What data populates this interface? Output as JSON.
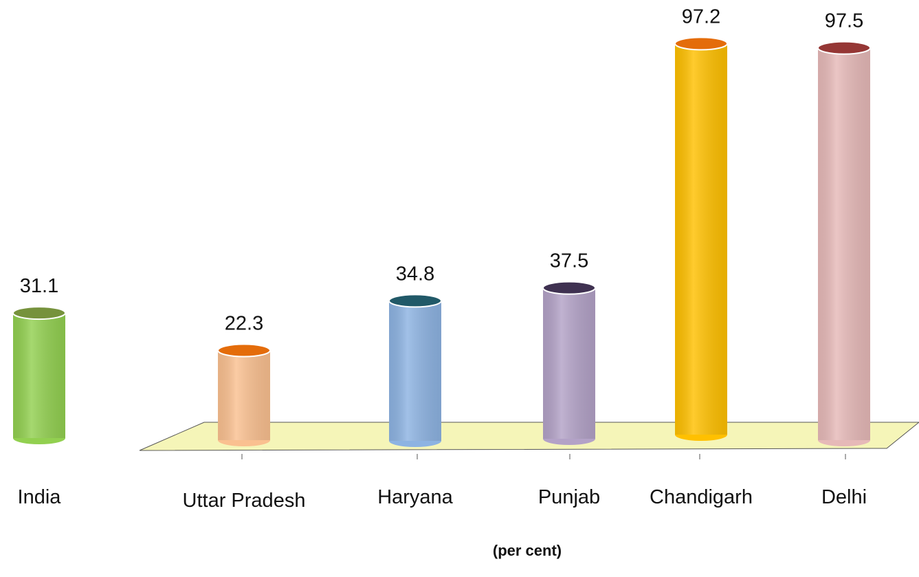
{
  "chart_data": {
    "type": "bar",
    "x_label": "(per cent)",
    "categories": [
      "India",
      "Uttar Pradesh",
      "Haryana",
      "Punjab",
      "Chandigarh",
      "Delhi"
    ],
    "values": [
      31.1,
      22.3,
      34.8,
      37.5,
      97.2,
      97.5
    ],
    "colors": [
      "#92d050",
      "#fac090",
      "#8db3e2",
      "#b3a2c7",
      "#ffc000",
      "#e6b9b8"
    ],
    "top_colors": [
      "#76923c",
      "#e46c0a",
      "#215968",
      "#3f3151",
      "#e46c0a",
      "#953735"
    ]
  }
}
